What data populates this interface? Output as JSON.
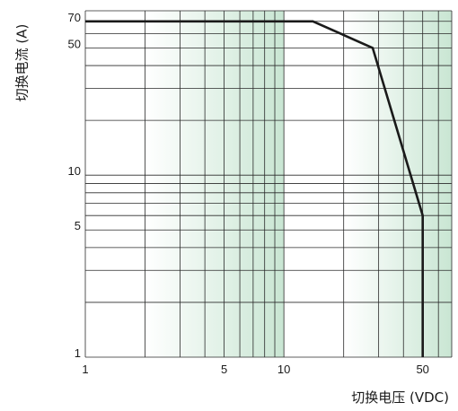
{
  "chart_data": {
    "type": "line",
    "xlabel": "切换电压 (VDC)",
    "ylabel": "切换电流 (A)",
    "x_scale": "log",
    "y_scale": "log",
    "xlim": [
      1,
      70
    ],
    "ylim": [
      1,
      80
    ],
    "x_ticks": [
      {
        "value": 1,
        "label": "1"
      },
      {
        "value": 5,
        "label": "5"
      },
      {
        "value": 10,
        "label": "10"
      },
      {
        "value": 50,
        "label": "50"
      }
    ],
    "y_ticks": [
      {
        "value": 1,
        "label": "1"
      },
      {
        "value": 5,
        "label": "5"
      },
      {
        "value": 10,
        "label": "10"
      },
      {
        "value": 50,
        "label": "50"
      },
      {
        "value": 70,
        "label": "70"
      }
    ],
    "grid": true,
    "shaded_bands": [
      [
        2,
        10
      ],
      [
        20,
        70
      ]
    ],
    "series": [
      {
        "x": [
          1,
          14,
          28,
          50,
          50
        ],
        "y": [
          70,
          70,
          50,
          6,
          1
        ]
      }
    ]
  },
  "colors": {
    "line": "#1a1a1a",
    "grid": "#2a2a2a",
    "band_edge": "#ffffff",
    "band_mid": "#c9e6d3"
  }
}
